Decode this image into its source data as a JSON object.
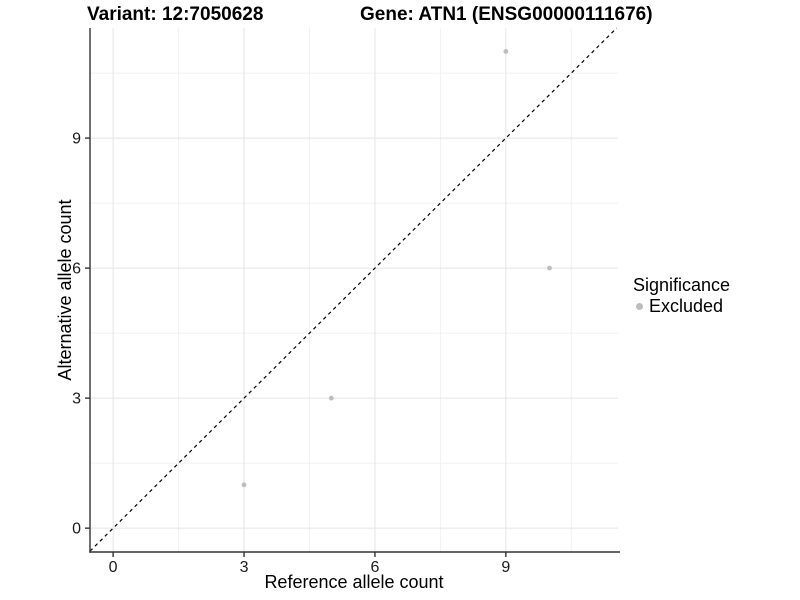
{
  "chart_data": {
    "type": "scatter",
    "titles": {
      "left": "Variant: 12:7050628",
      "right": "Gene: ATN1 (ENSG00000111676)"
    },
    "xlabel": "Reference allele count",
    "ylabel": "Alternative allele count",
    "xticks": [
      0,
      3,
      6,
      9
    ],
    "yticks": [
      0,
      3,
      6,
      9
    ],
    "minor_gridlines": [
      1.5,
      4.5,
      7.5,
      10.5
    ],
    "xlim": [
      -0.53,
      11.57
    ],
    "ylim": [
      -0.55,
      11.54
    ],
    "series": [
      {
        "name": "Excluded",
        "color": "#bdbdbd",
        "points": [
          {
            "x": 3,
            "y": 1
          },
          {
            "x": 5,
            "y": 3
          },
          {
            "x": 9,
            "y": 11
          },
          {
            "x": 10,
            "y": 6
          }
        ]
      }
    ],
    "reference_line": {
      "type": "identity",
      "slope": 1,
      "intercept": 0,
      "style": "dashed",
      "color": "#000000"
    },
    "legend": {
      "title": "Significance",
      "position": "right",
      "items": [
        {
          "label": "Excluded",
          "color": "#bdbdbd"
        }
      ]
    },
    "grid": true
  },
  "colors": {
    "background": "#ffffff",
    "axis_line": "#333333",
    "grid_major": "#e4e4e4",
    "grid_minor": "#f1f1f1",
    "tick_text": "#1a1a1a",
    "point": "#bdbdbd"
  }
}
